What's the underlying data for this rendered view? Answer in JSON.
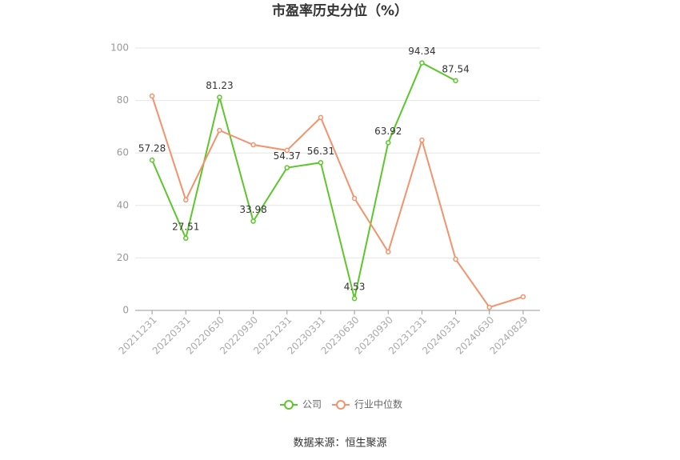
{
  "chart_data": {
    "type": "line",
    "title": "市盈率历史分位（%）",
    "categories": [
      "20211231",
      "20220331",
      "20220630",
      "20220930",
      "20221231",
      "20230331",
      "20230630",
      "20230930",
      "20231231",
      "20240331",
      "20240630",
      "20240829"
    ],
    "series": [
      {
        "name": "公司",
        "color": "#5cc72b",
        "values": [
          57.28,
          27.51,
          81.23,
          33.98,
          54.37,
          56.31,
          4.53,
          63.92,
          94.34,
          87.54,
          null,
          null
        ]
      },
      {
        "name": "行业中位数",
        "color": "#f4926b",
        "values": [
          81.7,
          42.1,
          68.6,
          63.1,
          61.0,
          73.5,
          42.7,
          22.3,
          64.9,
          19.5,
          1.2,
          5.2
        ]
      }
    ],
    "ylim": [
      0,
      100
    ],
    "yticks": [
      0,
      20,
      40,
      60,
      80,
      100
    ],
    "grid": true,
    "source": "数据来源：恒生聚源"
  }
}
